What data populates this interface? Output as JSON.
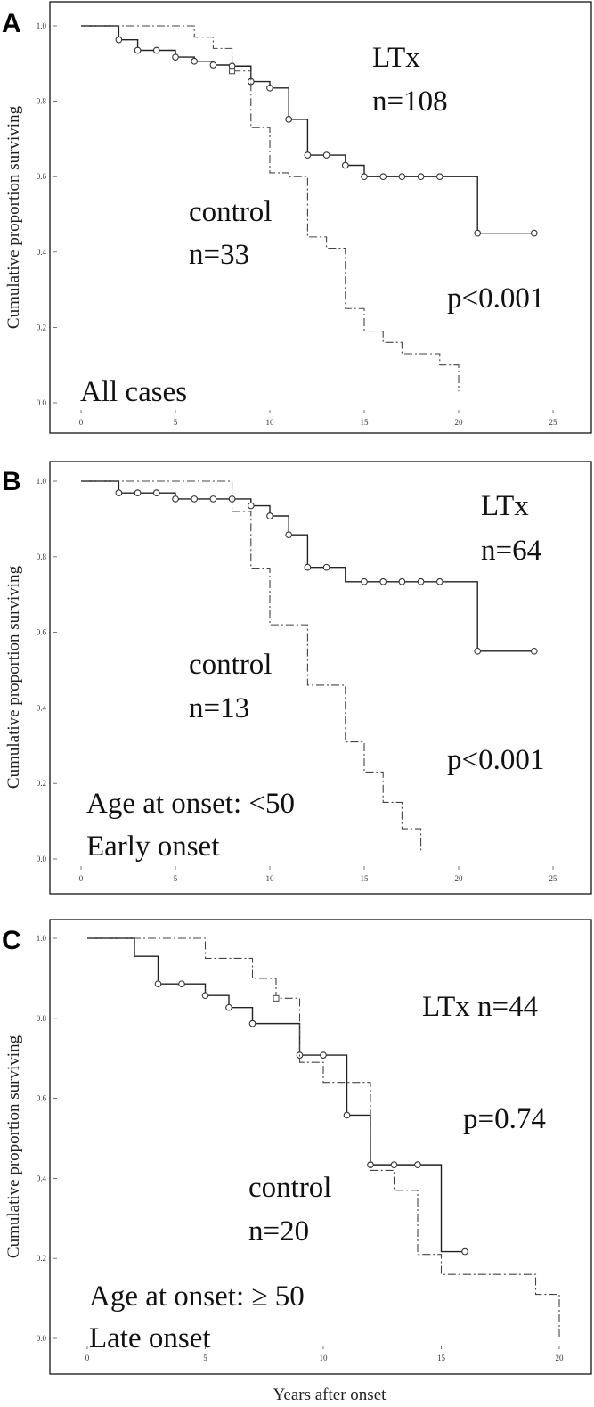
{
  "figure": {
    "x_label": "Years after onset"
  },
  "chart_data": [
    {
      "type": "line",
      "step": true,
      "panel_label": "A",
      "xlabel": "",
      "ylabel": "Cumulative proportion surviving",
      "xlim": [
        0,
        25
      ],
      "ylim": [
        0,
        1
      ],
      "x_ticks": [
        "0",
        "5",
        "10",
        "15",
        "20",
        "25"
      ],
      "y_ticks": [
        "0.0",
        "0.2",
        "0.4",
        "0.6",
        "0.8",
        "1.0"
      ],
      "annotations": [
        "LTx",
        "n=108",
        "control",
        "n=33",
        "p<0.001",
        "All cases"
      ],
      "series": [
        {
          "style": "solid",
          "points": [
            [
              0,
              1.0
            ],
            [
              2,
              0.963
            ],
            [
              3,
              0.935
            ],
            [
              4,
              0.935
            ],
            [
              5,
              0.917
            ],
            [
              6,
              0.906
            ],
            [
              7,
              0.896
            ],
            [
              8,
              0.893
            ],
            [
              9,
              0.852
            ],
            [
              10,
              0.835
            ],
            [
              11,
              0.752
            ],
            [
              12,
              0.657
            ],
            [
              13,
              0.657
            ],
            [
              14,
              0.63
            ],
            [
              15,
              0.6
            ],
            [
              16,
              0.6
            ],
            [
              17,
              0.6
            ],
            [
              18,
              0.6
            ],
            [
              19,
              0.6
            ],
            [
              21,
              0.45
            ],
            [
              24,
              0.45
            ]
          ],
          "censored": [
            [
              2,
              0.963
            ],
            [
              3,
              0.935
            ],
            [
              4,
              0.935
            ],
            [
              5,
              0.917
            ],
            [
              6,
              0.906
            ],
            [
              7,
              0.896
            ],
            [
              8,
              0.893
            ],
            [
              9,
              0.852
            ],
            [
              10,
              0.835
            ],
            [
              11,
              0.752
            ],
            [
              12,
              0.657
            ],
            [
              13,
              0.657
            ],
            [
              14,
              0.63
            ],
            [
              15,
              0.6
            ],
            [
              16,
              0.6
            ],
            [
              17,
              0.6
            ],
            [
              18,
              0.6
            ],
            [
              19,
              0.6
            ],
            [
              21,
              0.45
            ],
            [
              24,
              0.45
            ]
          ]
        },
        {
          "style": "dashdot",
          "points": [
            [
              0,
              1.0
            ],
            [
              6,
              0.97
            ],
            [
              7,
              0.94
            ],
            [
              8,
              0.88
            ],
            [
              9,
              0.73
            ],
            [
              10,
              0.61
            ],
            [
              11,
              0.6
            ],
            [
              12,
              0.44
            ],
            [
              13,
              0.41
            ],
            [
              14,
              0.25
            ],
            [
              15,
              0.19
            ],
            [
              16,
              0.16
            ],
            [
              17,
              0.13
            ],
            [
              19,
              0.1
            ],
            [
              20,
              0.03
            ]
          ],
          "censored": [
            [
              8,
              0.88
            ]
          ]
        }
      ]
    },
    {
      "type": "line",
      "step": true,
      "panel_label": "B",
      "xlabel": "",
      "ylabel": "Cumulative proportion surviving",
      "xlim": [
        0,
        25
      ],
      "ylim": [
        0,
        1
      ],
      "x_ticks": [
        "0",
        "5",
        "10",
        "15",
        "20",
        "25"
      ],
      "y_ticks": [
        "0.0",
        "0.2",
        "0.4",
        "0.6",
        "0.8",
        "1.0"
      ],
      "annotations": [
        "LTx",
        "n=64",
        "control",
        "n=13",
        "p<0.001",
        "Age at onset: <50",
        "Early onset"
      ],
      "series": [
        {
          "style": "solid",
          "points": [
            [
              0,
              1.0
            ],
            [
              2,
              0.969
            ],
            [
              3,
              0.969
            ],
            [
              4,
              0.969
            ],
            [
              5,
              0.953
            ],
            [
              6,
              0.953
            ],
            [
              7,
              0.953
            ],
            [
              8,
              0.953
            ],
            [
              9,
              0.935
            ],
            [
              10,
              0.908
            ],
            [
              11,
              0.858
            ],
            [
              12,
              0.772
            ],
            [
              13,
              0.772
            ],
            [
              14,
              0.734
            ],
            [
              15,
              0.734
            ],
            [
              16,
              0.734
            ],
            [
              17,
              0.734
            ],
            [
              18,
              0.734
            ],
            [
              19,
              0.734
            ],
            [
              21,
              0.55
            ],
            [
              24,
              0.55
            ]
          ],
          "censored": [
            [
              2,
              0.969
            ],
            [
              3,
              0.969
            ],
            [
              4,
              0.969
            ],
            [
              5,
              0.953
            ],
            [
              6,
              0.953
            ],
            [
              7,
              0.953
            ],
            [
              8,
              0.953
            ],
            [
              9,
              0.935
            ],
            [
              10,
              0.908
            ],
            [
              11,
              0.858
            ],
            [
              12,
              0.772
            ],
            [
              13,
              0.772
            ],
            [
              15,
              0.734
            ],
            [
              16,
              0.734
            ],
            [
              17,
              0.734
            ],
            [
              18,
              0.734
            ],
            [
              19,
              0.734
            ],
            [
              21,
              0.55
            ],
            [
              24,
              0.55
            ]
          ]
        },
        {
          "style": "dashdot",
          "points": [
            [
              0,
              1.0
            ],
            [
              8,
              0.92
            ],
            [
              9,
              0.77
            ],
            [
              10,
              0.62
            ],
            [
              12,
              0.46
            ],
            [
              14,
              0.31
            ],
            [
              15,
              0.23
            ],
            [
              16,
              0.15
            ],
            [
              17,
              0.08
            ],
            [
              18,
              0.02
            ]
          ],
          "censored": []
        }
      ]
    },
    {
      "type": "line",
      "step": true,
      "panel_label": "C",
      "xlabel": "Years after onset",
      "ylabel": "Cumulative proportion surviving",
      "xlim": [
        0,
        20
      ],
      "ylim": [
        0,
        1
      ],
      "x_ticks": [
        "0",
        "5",
        "10",
        "15",
        "20"
      ],
      "y_ticks": [
        "0.0",
        "0.2",
        "0.4",
        "0.6",
        "0.8",
        "1.0"
      ],
      "annotations": [
        "LTx n=44",
        "p=0.74",
        "control",
        "n=20",
        "Age at onset: ≥ 50",
        "Late onset"
      ],
      "series": [
        {
          "style": "solid",
          "points": [
            [
              0,
              1.0
            ],
            [
              2,
              0.955
            ],
            [
              3,
              0.886
            ],
            [
              4,
              0.886
            ],
            [
              5,
              0.857
            ],
            [
              6,
              0.827
            ],
            [
              7,
              0.787
            ],
            [
              9,
              0.708
            ],
            [
              10,
              0.708
            ],
            [
              11,
              0.558
            ],
            [
              12,
              0.434
            ],
            [
              13,
              0.434
            ],
            [
              14,
              0.434
            ],
            [
              15,
              0.217
            ],
            [
              16,
              0.217
            ]
          ],
          "censored": [
            [
              3,
              0.886
            ],
            [
              4,
              0.886
            ],
            [
              5,
              0.857
            ],
            [
              6,
              0.827
            ],
            [
              7,
              0.787
            ],
            [
              9,
              0.708
            ],
            [
              10,
              0.708
            ],
            [
              11,
              0.558
            ],
            [
              12,
              0.434
            ],
            [
              13,
              0.434
            ],
            [
              14,
              0.434
            ],
            [
              16,
              0.217
            ]
          ]
        },
        {
          "style": "dashdot",
          "points": [
            [
              0,
              1.0
            ],
            [
              5,
              0.95
            ],
            [
              7,
              0.9
            ],
            [
              8,
              0.85
            ],
            [
              9,
              0.69
            ],
            [
              10,
              0.64
            ],
            [
              12,
              0.42
            ],
            [
              13,
              0.37
            ],
            [
              14,
              0.21
            ],
            [
              15,
              0.16
            ],
            [
              19,
              0.11
            ],
            [
              20,
              0.0
            ]
          ],
          "censored": [
            [
              8,
              0.85
            ]
          ]
        }
      ]
    }
  ]
}
